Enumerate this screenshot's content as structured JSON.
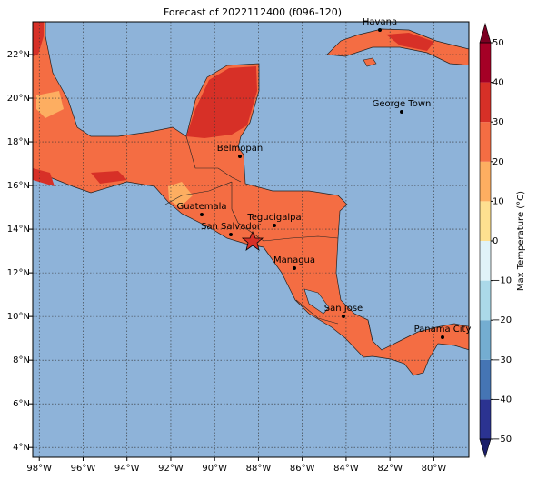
{
  "map": {
    "title": "Forecast of 2022112400 (f096-120)",
    "xlim": [
      -98.3,
      -78.4
    ],
    "ylim": [
      3.55,
      23.5
    ],
    "xticks": [
      {
        "value": -98,
        "label": "98°W"
      },
      {
        "value": -96,
        "label": "96°W"
      },
      {
        "value": -94,
        "label": "94°W"
      },
      {
        "value": -92,
        "label": "92°W"
      },
      {
        "value": -90,
        "label": "90°W"
      },
      {
        "value": -88,
        "label": "88°W"
      },
      {
        "value": -86,
        "label": "86°W"
      },
      {
        "value": -84,
        "label": "84°W"
      },
      {
        "value": -82,
        "label": "82°W"
      },
      {
        "value": -80,
        "label": "80°W"
      }
    ],
    "yticks": [
      {
        "value": 4,
        "label": "4°N"
      },
      {
        "value": 6,
        "label": "6°N"
      },
      {
        "value": 8,
        "label": "8°N"
      },
      {
        "value": 10,
        "label": "10°N"
      },
      {
        "value": 12,
        "label": "12°N"
      },
      {
        "value": 14,
        "label": "14°N"
      },
      {
        "value": 16,
        "label": "16°N"
      },
      {
        "value": 18,
        "label": "18°N"
      },
      {
        "value": 20,
        "label": "20°N"
      },
      {
        "value": 22,
        "label": "22°N"
      }
    ],
    "grid": true,
    "cities": [
      "Havana",
      "Belmopan",
      "George Town",
      "Guatemala",
      "San Salvador",
      "Tegucigalpa",
      "Managua",
      "San Jose",
      "Panama City"
    ],
    "colorbar": {
      "label": "Max Temperature (°C)",
      "ticks": [
        {
          "value": -50,
          "label": "−50"
        },
        {
          "value": -40,
          "label": "−40"
        },
        {
          "value": -30,
          "label": "−30"
        },
        {
          "value": -20,
          "label": "−20"
        },
        {
          "value": -10,
          "label": "−10"
        },
        0,
        10,
        20,
        30,
        40,
        50
      ],
      "colors": [
        "#2b3391",
        "#4575b4",
        "#74add1",
        "#abd9e9",
        "#e0f3f8",
        "#fee090",
        "#fdae61",
        "#f46d43",
        "#d73027",
        "#a50026"
      ],
      "under": "#1b1f6b",
      "over": "#7a0022"
    }
  }
}
